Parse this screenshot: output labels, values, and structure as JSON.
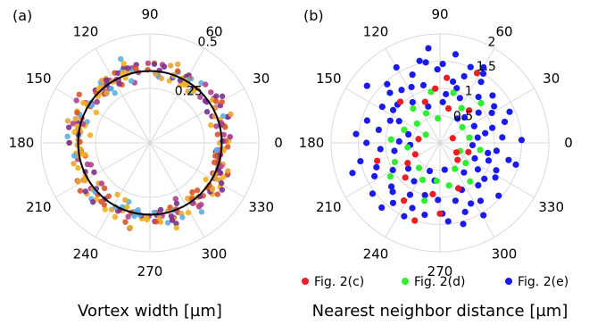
{
  "chart_data": [
    {
      "type": "scatter",
      "panel_label": "(a)",
      "polar": true,
      "angle_ticks_deg": [
        "0",
        "30",
        "60",
        "90",
        "120",
        "150",
        "180",
        "210",
        "240",
        "270",
        "300",
        "330"
      ],
      "r_ticks": [
        "0.25",
        "0.5"
      ],
      "rlim": [
        0,
        0.5
      ],
      "xlabel": "Vortex width [µm]",
      "reference_circle_r": 0.33,
      "point_colors": [
        "#7b2f8f",
        "#e8a33a",
        "#5ab0e0",
        "#d9552b",
        "#b1428c",
        "#f0b020"
      ],
      "series_summary": {
        "r_center": 0.34,
        "r_spread": 0.05,
        "n_points": 320
      },
      "grid": true
    },
    {
      "type": "scatter",
      "panel_label": "(b)",
      "polar": true,
      "angle_ticks_deg": [
        "0",
        "30",
        "60",
        "90",
        "120",
        "150",
        "180",
        "210",
        "240",
        "270",
        "300",
        "330"
      ],
      "r_ticks": [
        "0.5",
        "1",
        "1.5",
        "2"
      ],
      "rlim": [
        0,
        2
      ],
      "xlabel": "Nearest neighbor distance [µm]",
      "legend_position": "bottom",
      "series": [
        {
          "name": "Fig. 2(c)",
          "color": "#ee1d23",
          "points": [
            [
              62,
              1.45
            ],
            [
              84,
              1.2
            ],
            [
              95,
              1.0
            ],
            [
              110,
              0.8
            ],
            [
              170,
              0.4
            ],
            [
              205,
              0.5
            ],
            [
              212,
              0.7
            ],
            [
              225,
              0.9
            ],
            [
              238,
              1.25
            ],
            [
              252,
              1.5
            ],
            [
              270,
              1.3
            ],
            [
              292,
              0.9
            ],
            [
              316,
              0.45
            ],
            [
              330,
              0.35
            ],
            [
              20,
              0.25
            ],
            [
              48,
              0.8
            ],
            [
              134,
              1.05
            ],
            [
              196,
              1.2
            ],
            [
              262,
              0.95
            ],
            [
              342,
              0.55
            ],
            [
              76,
              0.65
            ]
          ]
        },
        {
          "name": "Fig. 2(d)",
          "color": "#2ef02e",
          "points": [
            [
              100,
              0.95
            ],
            [
              115,
              0.6
            ],
            [
              140,
              0.55
            ],
            [
              160,
              0.7
            ],
            [
              188,
              0.6
            ],
            [
              203,
              0.9
            ],
            [
              230,
              0.6
            ],
            [
              245,
              0.75
            ],
            [
              265,
              0.7
            ],
            [
              282,
              0.8
            ],
            [
              300,
              0.55
            ],
            [
              322,
              0.6
            ],
            [
              338,
              0.4
            ],
            [
              10,
              0.55
            ],
            [
              35,
              0.5
            ],
            [
              58,
              0.75
            ],
            [
              75,
              0.95
            ],
            [
              128,
              0.8
            ],
            [
              150,
              0.3
            ],
            [
              214,
              1.1
            ],
            [
              255,
              1.1
            ],
            [
              308,
              0.9
            ],
            [
              350,
              0.75
            ],
            [
              95,
              0.45
            ],
            [
              176,
              0.9
            ],
            [
              44,
              1.05
            ]
          ]
        },
        {
          "name": "Fig. 2(e)",
          "color": "#1a1aee",
          "points": [
            [
              60,
              1.6
            ],
            [
              70,
              1.3
            ],
            [
              80,
              1.65
            ],
            [
              88,
              1.45
            ],
            [
              97,
              1.75
            ],
            [
              104,
              1.55
            ],
            [
              112,
              1.35
            ],
            [
              120,
              1.6
            ],
            [
              126,
              1.2
            ],
            [
              132,
              1.45
            ],
            [
              142,
              1.7
            ],
            [
              148,
              1.25
            ],
            [
              156,
              1.0
            ],
            [
              163,
              1.4
            ],
            [
              168,
              1.15
            ],
            [
              174,
              1.55
            ],
            [
              180,
              1.35
            ],
            [
              186,
              1.1
            ],
            [
              193,
              1.5
            ],
            [
              199,
              1.7
            ],
            [
              207,
              1.35
            ],
            [
              217,
              1.55
            ],
            [
              222,
              1.2
            ],
            [
              232,
              1.4
            ],
            [
              240,
              1.1
            ],
            [
              247,
              1.3
            ],
            [
              250,
              0.55
            ],
            [
              258,
              1.35
            ],
            [
              268,
              1.05
            ],
            [
              276,
              1.45
            ],
            [
              285,
              1.1
            ],
            [
              290,
              1.35
            ],
            [
              297,
              1.25
            ],
            [
              305,
              1.3
            ],
            [
              312,
              1.05
            ],
            [
              318,
              1.45
            ],
            [
              325,
              0.85
            ],
            [
              334,
              1.15
            ],
            [
              340,
              0.95
            ],
            [
              346,
              1.3
            ],
            [
              352,
              1.05
            ],
            [
              356,
              0.6
            ],
            [
              5,
              1.15
            ],
            [
              12,
              0.85
            ],
            [
              18,
              1.25
            ],
            [
              26,
              0.7
            ],
            [
              30,
              1.1
            ],
            [
              38,
              0.9
            ],
            [
              42,
              1.3
            ],
            [
              50,
              1.1
            ],
            [
              54,
              0.55
            ],
            [
              66,
              0.9
            ],
            [
              86,
              0.75
            ],
            [
              106,
              1.1
            ],
            [
              138,
              1.05
            ],
            [
              152,
              0.85
            ],
            [
              178,
              0.75
            ],
            [
              184,
              0.55
            ],
            [
              210,
              1.0
            ],
            [
              226,
              1.25
            ],
            [
              236,
              0.85
            ],
            [
              244,
              1.5
            ],
            [
              262,
              0.7
            ],
            [
              272,
              1.3
            ],
            [
              280,
              0.5
            ],
            [
              295,
              0.95
            ],
            [
              301,
              1.55
            ],
            [
              328,
              1.2
            ],
            [
              344,
              1.45
            ],
            [
              2,
              1.5
            ],
            [
              16,
              1.0
            ],
            [
              24,
              1.4
            ],
            [
              46,
              0.65
            ],
            [
              56,
              1.35
            ],
            [
              68,
              1.5
            ],
            [
              78,
              1.15
            ],
            [
              92,
              1.35
            ],
            [
              100,
              1.5
            ],
            [
              117,
              1.15
            ],
            [
              124,
              0.9
            ],
            [
              135,
              1.3
            ],
            [
              145,
              1.05
            ],
            [
              165,
              0.6
            ],
            [
              190,
              0.85
            ],
            [
              201,
              1.25
            ],
            [
              219,
              0.75
            ],
            [
              228,
              1.6
            ],
            [
              254,
              1.0
            ],
            [
              286,
              1.55
            ],
            [
              309,
              0.7
            ],
            [
              321,
              1.05
            ],
            [
              336,
              0.7
            ],
            [
              348,
              0.9
            ],
            [
              8,
              0.7
            ],
            [
              34,
              1.2
            ],
            [
              58,
              1.5
            ],
            [
              73,
              1.05
            ],
            [
              83,
              0.9
            ],
            [
              108,
              0.7
            ]
          ]
        }
      ],
      "grid": true
    }
  ]
}
